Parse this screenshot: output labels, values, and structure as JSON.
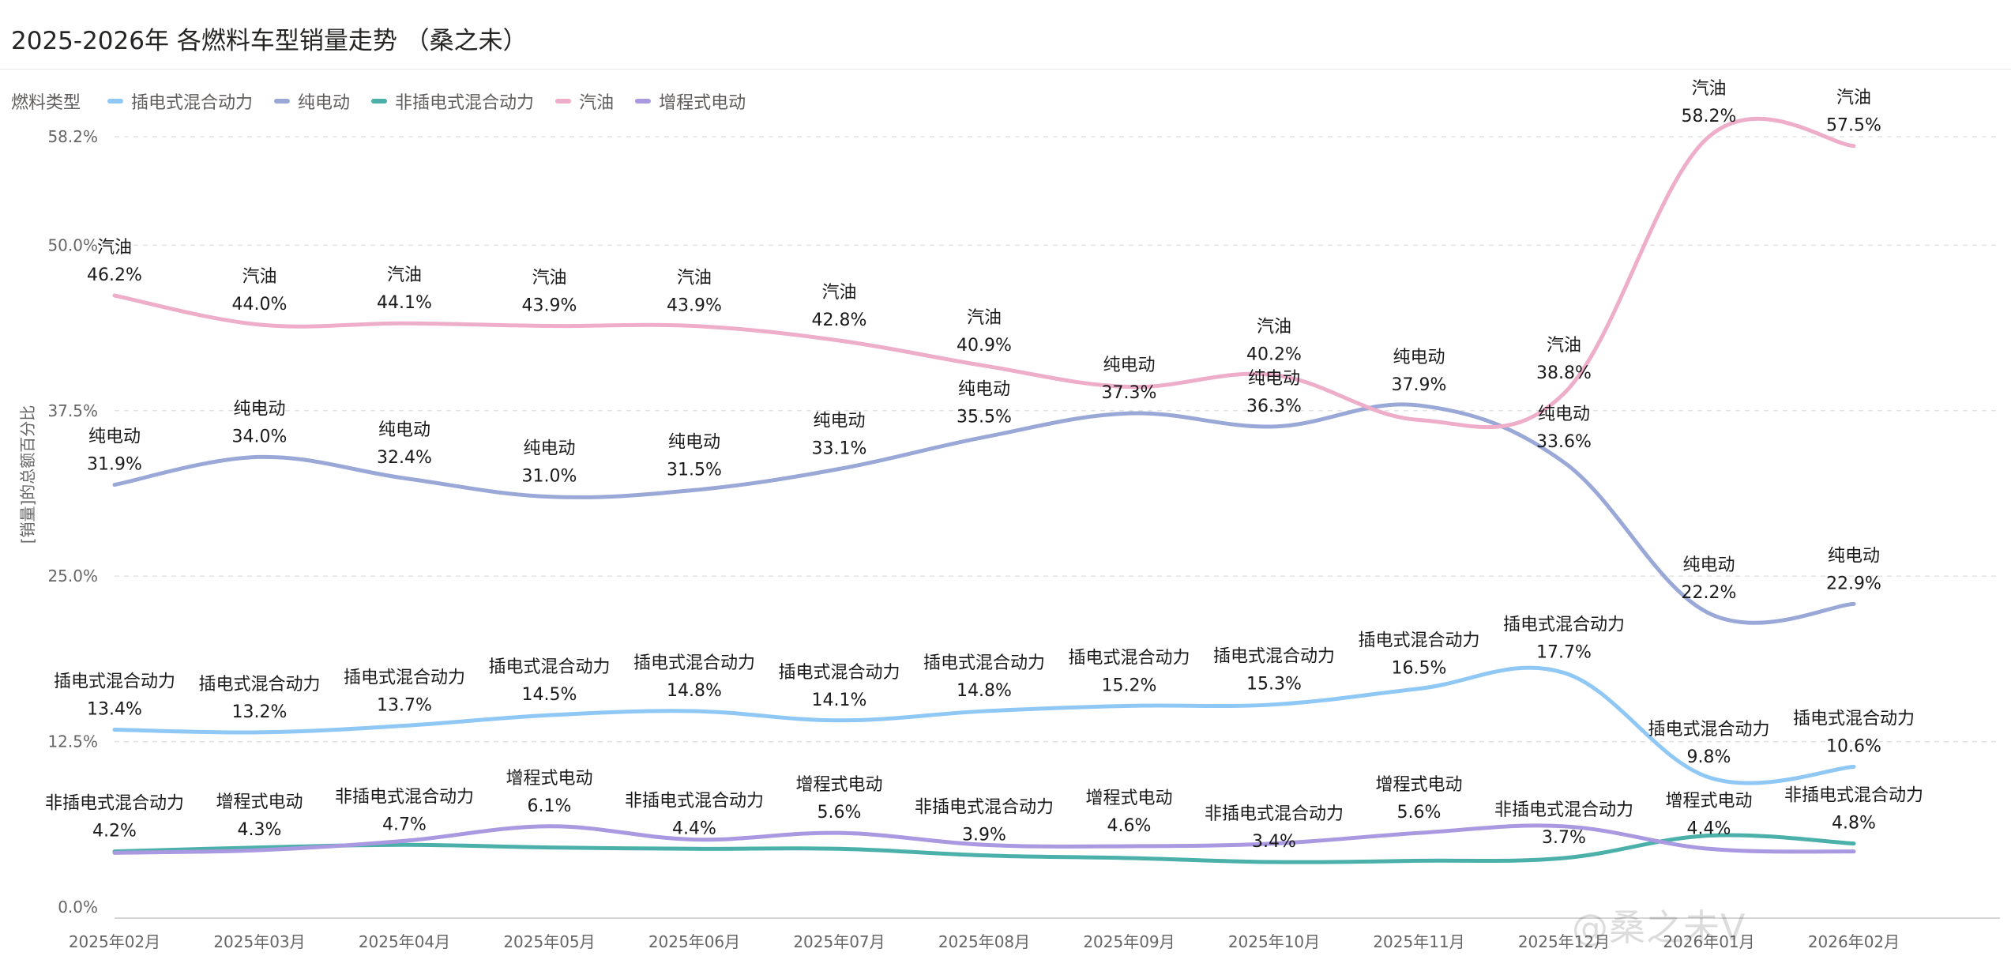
{
  "page": {
    "title": "2025-2026年 各燃料车型销量走势 （桑之未）"
  },
  "watermark": "@桑之未V",
  "legend": {
    "title": "燃料类型"
  },
  "chart_data": {
    "type": "line",
    "title": "2025-2026年 各燃料车型销量走势 （桑之未）",
    "xlabel": "",
    "ylabel": "[销量]的总额百分比",
    "ylim": [
      0,
      58.2
    ],
    "ytick_values": [
      0,
      12.5,
      25,
      37.5,
      50,
      58.2
    ],
    "ytick_labels": [
      "0.0%",
      "12.5%",
      "25.0%",
      "37.5%",
      "50.0%",
      "58.2%"
    ],
    "grid": true,
    "legend_position": "top-left",
    "categories": [
      "2025年02月",
      "2025年03月",
      "2025年04月",
      "2025年05月",
      "2025年06月",
      "2025年07月",
      "2025年08月",
      "2025年09月",
      "2025年10月",
      "2025年11月",
      "2025年12月",
      "2026年01月",
      "2026年02月"
    ],
    "series": [
      {
        "name": "插电式混合动力",
        "color": "#8fc8f5",
        "values": [
          13.4,
          13.2,
          13.7,
          14.5,
          14.8,
          14.1,
          14.8,
          15.2,
          15.3,
          16.5,
          17.7,
          9.8,
          10.6
        ],
        "labels": [
          "13.4%",
          "13.2%",
          "13.7%",
          "14.5%",
          "14.8%",
          "14.1%",
          "14.8%",
          "15.2%",
          "15.3%",
          "16.5%",
          "17.7%",
          "9.8%",
          "10.6%"
        ],
        "labeled": [
          true,
          true,
          true,
          true,
          true,
          true,
          true,
          true,
          true,
          true,
          true,
          true,
          true
        ]
      },
      {
        "name": "纯电动",
        "color": "#9aa8d8",
        "values": [
          31.9,
          34.0,
          32.4,
          31.0,
          31.5,
          33.1,
          35.5,
          37.3,
          36.3,
          37.9,
          33.6,
          22.2,
          22.9
        ],
        "labels": [
          "31.9%",
          "34.0%",
          "32.4%",
          "31.0%",
          "31.5%",
          "33.1%",
          "35.5%",
          "37.3%",
          "36.3%",
          "37.9%",
          "33.6%",
          "22.2%",
          "22.9%"
        ],
        "labeled": [
          true,
          true,
          true,
          true,
          true,
          true,
          true,
          true,
          true,
          true,
          true,
          true,
          true
        ]
      },
      {
        "name": "非插电式混合动力",
        "color": "#4bb0aa",
        "values": [
          4.2,
          4.5,
          4.7,
          4.5,
          4.4,
          4.4,
          3.9,
          3.7,
          3.4,
          3.5,
          3.7,
          5.4,
          4.8
        ],
        "labels": [
          "4.2%",
          "",
          "4.7%",
          "",
          "4.4%",
          "",
          "3.9%",
          "",
          "3.4%",
          "",
          "3.7%",
          "",
          "4.8%"
        ],
        "labeled": [
          true,
          false,
          true,
          false,
          true,
          false,
          true,
          false,
          true,
          false,
          true,
          false,
          true
        ]
      },
      {
        "name": "汽油",
        "color": "#eeadc9",
        "values": [
          46.2,
          44.0,
          44.1,
          43.9,
          43.9,
          42.8,
          40.9,
          39.3,
          40.2,
          36.8,
          38.8,
          58.2,
          57.5
        ],
        "labels": [
          "46.2%",
          "44.0%",
          "44.1%",
          "43.9%",
          "43.9%",
          "42.8%",
          "40.9%",
          "",
          "40.2%",
          "",
          "38.8%",
          "58.2%",
          "57.5%"
        ],
        "labeled": [
          true,
          true,
          true,
          true,
          true,
          true,
          true,
          false,
          true,
          false,
          true,
          true,
          true
        ]
      },
      {
        "name": "增程式电动",
        "color": "#a899e0",
        "values": [
          4.1,
          4.3,
          5.0,
          6.1,
          5.1,
          5.6,
          4.7,
          4.6,
          4.8,
          5.6,
          6.1,
          4.4,
          4.2
        ],
        "labels": [
          "",
          "4.3%",
          "",
          "6.1%",
          "",
          "5.6%",
          "",
          "4.6%",
          "",
          "5.6%",
          "",
          "4.4%",
          ""
        ],
        "labeled": [
          false,
          true,
          false,
          true,
          false,
          true,
          false,
          true,
          false,
          true,
          false,
          true,
          false
        ]
      }
    ]
  }
}
